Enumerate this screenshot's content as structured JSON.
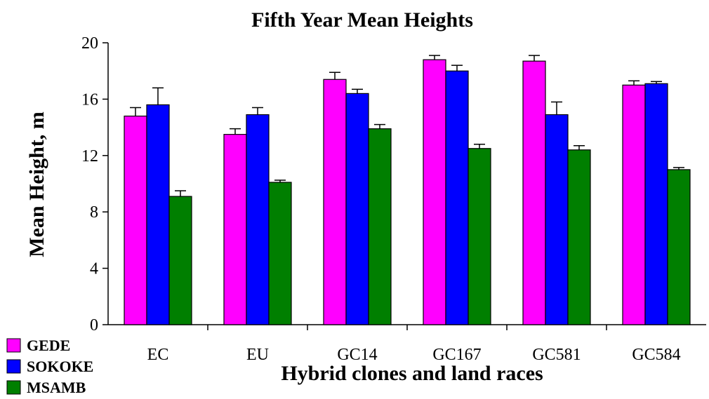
{
  "chart_data": {
    "type": "bar",
    "title": "Fifth Year Mean Heights",
    "xlabel": "Hybrid clones and land races",
    "ylabel": "Mean Height, m",
    "categories": [
      "EC",
      "EU",
      "GC14",
      "GC167",
      "GC581",
      "GC584"
    ],
    "ylim": [
      0,
      20
    ],
    "yticks": [
      0,
      4,
      8,
      12,
      16,
      20
    ],
    "grid": false,
    "legend_position": "bottom-left",
    "error_bars": true,
    "series": [
      {
        "name": "GEDE",
        "color": "#ff00ff",
        "values": [
          14.8,
          13.5,
          17.4,
          18.8,
          18.7,
          17.0
        ],
        "errors": [
          0.6,
          0.4,
          0.5,
          0.3,
          0.4,
          0.3
        ]
      },
      {
        "name": "SOKOKE",
        "color": "#0000ff",
        "values": [
          15.6,
          14.9,
          16.4,
          18.0,
          14.9,
          17.1
        ],
        "errors": [
          1.2,
          0.5,
          0.3,
          0.4,
          0.9,
          0.15
        ]
      },
      {
        "name": "MSAMB",
        "color": "#007f00",
        "values": [
          9.1,
          10.1,
          13.9,
          12.5,
          12.4,
          11.0
        ],
        "errors": [
          0.4,
          0.15,
          0.3,
          0.3,
          0.3,
          0.15
        ]
      }
    ]
  }
}
